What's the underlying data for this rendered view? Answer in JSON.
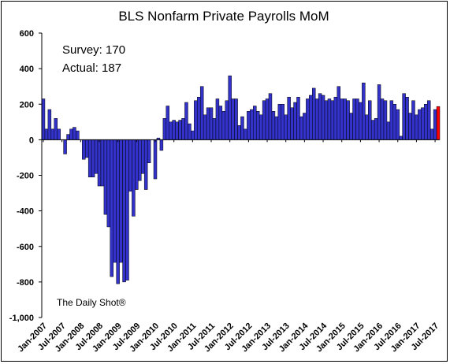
{
  "chart_data": {
    "type": "bar",
    "title": "BLS Nonfarm Private Payrolls MoM",
    "xlabel": "",
    "ylabel": "",
    "ylim": [
      -1000,
      600
    ],
    "yticks": [
      600,
      400,
      200,
      0,
      -200,
      -400,
      -600,
      -800,
      -1000
    ],
    "yticklabels": [
      "600",
      "400",
      "200",
      "0",
      "-200",
      "-400",
      "-600",
      "-800",
      "-1,000"
    ],
    "xtick_labels": [
      "Jan-2007",
      "Jul-2007",
      "Jan-2008",
      "Jul-2008",
      "Jan-2009",
      "Jul-2009",
      "Jan-2010",
      "Jul-2010",
      "Jan-2011",
      "Jul-2011",
      "Jan-2012",
      "Jul-2012",
      "Jan-2013",
      "Jul-2013",
      "Jan-2014",
      "Jul-2014",
      "Jan-2015",
      "Jul-2015",
      "Jan-2016",
      "Jul-2016",
      "Jan-2017",
      "Jul-2017"
    ],
    "start_month": "Jan-2007",
    "values": [
      230,
      60,
      170,
      60,
      120,
      60,
      0,
      -80,
      30,
      60,
      70,
      50,
      0,
      -110,
      -100,
      -210,
      -210,
      -190,
      -260,
      -260,
      -420,
      -490,
      -770,
      -690,
      -810,
      -690,
      -800,
      -790,
      -290,
      -430,
      -280,
      -230,
      -190,
      -280,
      -130,
      0,
      -220,
      10,
      -60,
      120,
      190,
      100,
      110,
      100,
      110,
      120,
      210,
      90,
      50,
      220,
      240,
      300,
      140,
      180,
      180,
      120,
      230,
      190,
      160,
      220,
      360,
      230,
      230,
      80,
      130,
      60,
      160,
      170,
      190,
      160,
      140,
      220,
      230,
      260,
      160,
      130,
      200,
      200,
      140,
      240,
      180,
      210,
      240,
      130,
      150,
      230,
      250,
      290,
      230,
      260,
      250,
      220,
      230,
      220,
      240,
      300,
      230,
      230,
      220,
      150,
      230,
      230,
      210,
      320,
      140,
      220,
      110,
      120,
      310,
      230,
      220,
      100,
      220,
      200,
      170,
      20,
      260,
      240,
      150,
      220,
      140,
      170,
      180,
      200,
      220,
      60,
      170,
      187
    ],
    "highlight_last": true,
    "bar_color": "#3333cc",
    "highlight_color": "#ff0000",
    "grid": false,
    "legend": "none"
  },
  "annotations": {
    "survey": "Survey: 170",
    "actual": "Actual:  187",
    "credit": "The Daily Shot®"
  }
}
